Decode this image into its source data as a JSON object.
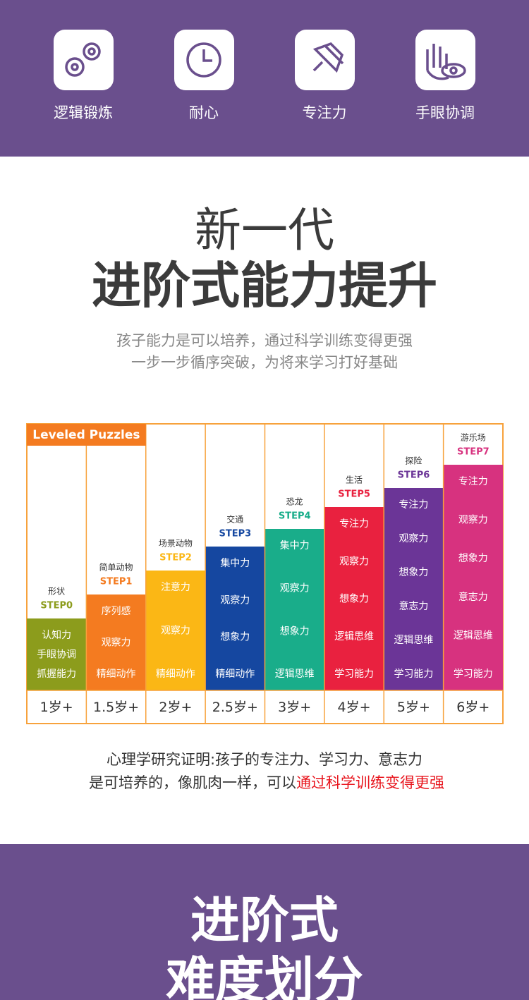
{
  "features": [
    {
      "label": "逻辑锻炼"
    },
    {
      "label": "耐心"
    },
    {
      "label": "专注力"
    },
    {
      "label": "手眼协调"
    }
  ],
  "headline": {
    "line1": "新一代",
    "line2": "进阶式能力提升"
  },
  "subtitle": {
    "line1": "孩子能力是可以培养，通过科学训练变得更强",
    "line2": "一步一步循序突破，为将来学习打好基础"
  },
  "steps": {
    "banner": "Leveled Puzzles",
    "columns": [
      {
        "theme": "形状",
        "step": "STEP0",
        "color": "#8c9c1c",
        "skills": [
          "认知力",
          "手眼协调",
          "抓握能力"
        ],
        "age": "1岁+"
      },
      {
        "theme": "简单动物",
        "step": "STEP1",
        "color": "#f47b20",
        "skills": [
          "序列感",
          "观察力",
          "精细动作"
        ],
        "age": "1.5岁+"
      },
      {
        "theme": "场景动物",
        "step": "STEP2",
        "color": "#fbb715",
        "skills": [
          "注意力",
          "观察力",
          "精细动作"
        ],
        "age": "2岁+"
      },
      {
        "theme": "交通",
        "step": "STEP3",
        "color": "#1547a0",
        "skills": [
          "集中力",
          "观察力",
          "想象力",
          "精细动作"
        ],
        "age": "2.5岁+"
      },
      {
        "theme": "恐龙",
        "step": "STEP4",
        "color": "#19ad8a",
        "skills": [
          "集中力",
          "观察力",
          "想象力",
          "逻辑思维"
        ],
        "age": "3岁+"
      },
      {
        "theme": "生活",
        "step": "STEP5",
        "color": "#e9213f",
        "skills": [
          "专注力",
          "观察力",
          "想象力",
          "逻辑思维",
          "学习能力"
        ],
        "age": "4岁+"
      },
      {
        "theme": "探险",
        "step": "STEP6",
        "color": "#6b3597",
        "skills": [
          "专注力",
          "观察力",
          "想象力",
          "意志力",
          "逻辑思维",
          "学习能力"
        ],
        "age": "5岁+"
      },
      {
        "theme": "游乐场",
        "step": "STEP7",
        "color": "#d7327f",
        "skills": [
          "专注力",
          "观察力",
          "想象力",
          "意志力",
          "逻辑思维",
          "学习能力"
        ],
        "age": "6岁+"
      }
    ]
  },
  "note": {
    "line1": "心理学研究证明:孩子的专注力、学习力、意志力",
    "line2": "是可培养的，像肌肉一样，可以",
    "highlight": "通过科学训练变得更强"
  },
  "footer": {
    "line1": "进阶式",
    "line2": "难度划分"
  }
}
